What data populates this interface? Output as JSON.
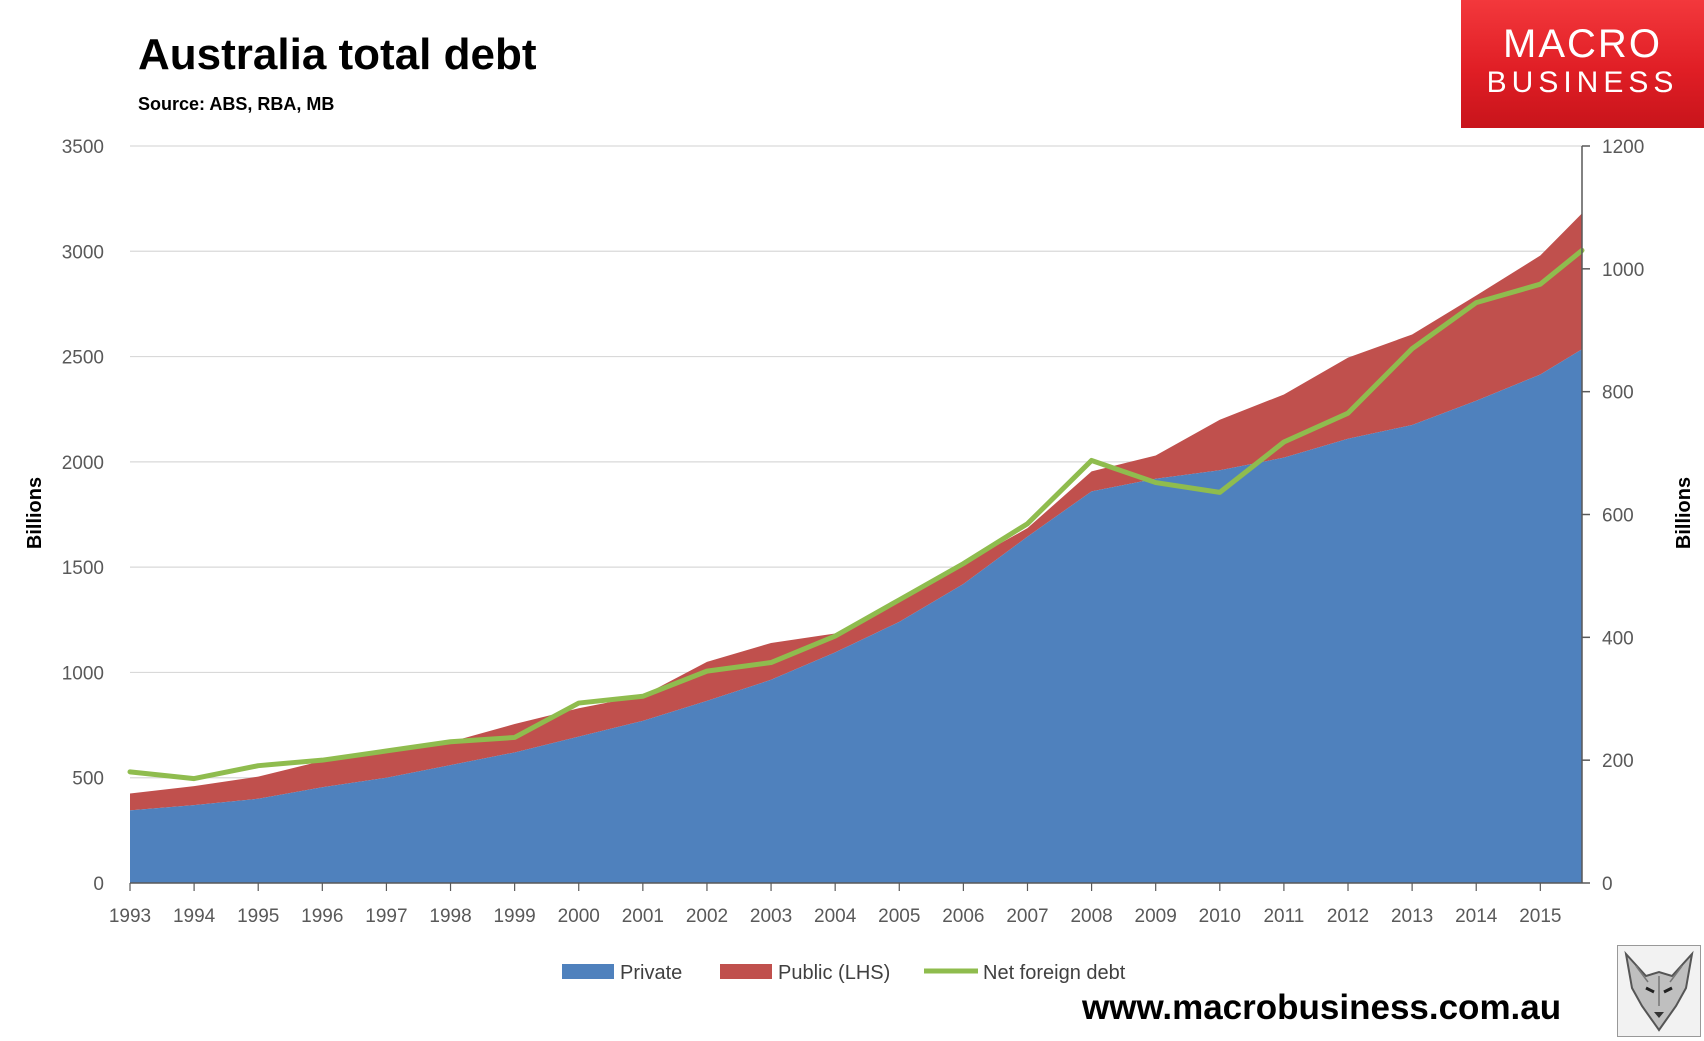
{
  "chart_data": {
    "type": "area",
    "title": "Australia total debt",
    "subtitle": "Source: ABS, RBA, MB",
    "ylabel_left": "Billions",
    "ylabel_right": "Billions",
    "ylim_left": [
      0,
      3500
    ],
    "yticks_left": [
      "0",
      "500",
      "1000",
      "1500",
      "2000",
      "2500",
      "3000",
      "3500"
    ],
    "ylim_right": [
      0,
      1200
    ],
    "yticks_right": [
      "0",
      "200",
      "400",
      "600",
      "800",
      "1000",
      "1200"
    ],
    "xlim": [
      1993,
      2015.65
    ],
    "x_tick_labels": [
      "1993",
      "1994",
      "1995",
      "1996",
      "1997",
      "1998",
      "1999",
      "2000",
      "2001",
      "2002",
      "2003",
      "2004",
      "2005",
      "2006",
      "2007",
      "2008",
      "2009",
      "2010",
      "2011",
      "2012",
      "2013",
      "2014",
      "2015"
    ],
    "grid": "horizontal",
    "legend_position": "bottom",
    "x": [
      1993,
      1994,
      1995,
      1996,
      1997,
      1998,
      1999,
      2000,
      2001,
      2002,
      2003,
      2004,
      2005,
      2006,
      2007,
      2008,
      2009,
      2010,
      2011,
      2012,
      2013,
      2014,
      2015,
      2015.65
    ],
    "series": [
      {
        "name": "Private",
        "kind": "stacked-area",
        "axis": "left",
        "color": "#4f81bd",
        "values": [
          345,
          370,
          400,
          455,
          500,
          560,
          620,
          695,
          770,
          865,
          965,
          1095,
          1240,
          1420,
          1645,
          1860,
          1920,
          1960,
          2020,
          2110,
          2175,
          2290,
          2415,
          2535
        ]
      },
      {
        "name": "Public (LHS)",
        "kind": "stacked-area",
        "axis": "left",
        "color": "#c0504d",
        "values": [
          80,
          90,
          105,
          125,
          120,
          110,
          135,
          135,
          120,
          185,
          175,
          90,
          100,
          95,
          40,
          95,
          110,
          240,
          300,
          385,
          430,
          500,
          565,
          645
        ]
      },
      {
        "name": "Net foreign debt",
        "kind": "line",
        "axis": "right",
        "color": "#8fbc4e",
        "values": [
          181,
          170,
          191,
          200,
          215,
          230,
          237,
          293,
          304,
          345,
          359,
          402,
          461,
          520,
          585,
          688,
          652,
          636,
          718,
          765,
          870,
          945,
          975,
          1030
        ]
      }
    ]
  },
  "logo": {
    "line1": "MACRO",
    "line2": "BUSINESS"
  },
  "footer": {
    "url": "www.macrobusiness.com.au"
  },
  "fox_image": {
    "icon": "fox-emblem-icon"
  }
}
